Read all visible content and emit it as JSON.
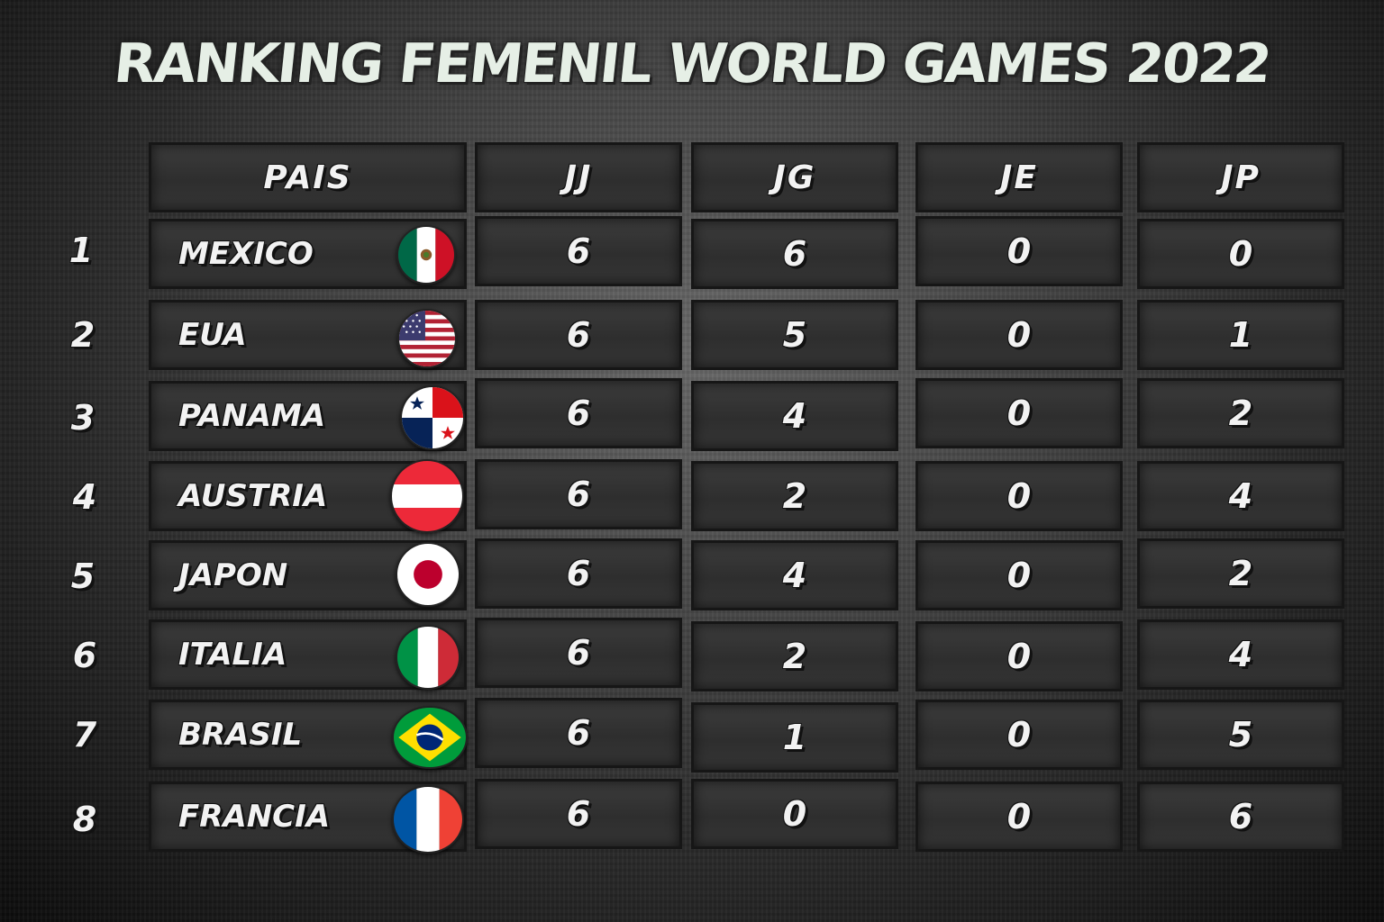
{
  "title": "RANKING FEMENIL WORLD GAMES 2022",
  "headers": {
    "pais": "PAIS",
    "jj": "JJ",
    "jg": "JG",
    "je": "JE",
    "jp": "JP"
  },
  "rows": [
    {
      "rank": "1",
      "country": "MEXICO",
      "jj": "6",
      "jg": "6",
      "je": "0",
      "jp": "0",
      "flag": "mexico-flag-icon"
    },
    {
      "rank": "2",
      "country": "EUA",
      "jj": "6",
      "jg": "5",
      "je": "0",
      "jp": "1",
      "flag": "usa-flag-icon"
    },
    {
      "rank": "3",
      "country": "PANAMA",
      "jj": "6",
      "jg": "4",
      "je": "0",
      "jp": "2",
      "flag": "panama-flag-icon"
    },
    {
      "rank": "4",
      "country": "AUSTRIA",
      "jj": "6",
      "jg": "2",
      "je": "0",
      "jp": "4",
      "flag": "austria-flag-icon"
    },
    {
      "rank": "5",
      "country": "JAPON",
      "jj": "6",
      "jg": "4",
      "je": "0",
      "jp": "2",
      "flag": "japan-flag-icon"
    },
    {
      "rank": "6",
      "country": "ITALIA",
      "jj": "6",
      "jg": "2",
      "je": "0",
      "jp": "4",
      "flag": "italy-flag-icon"
    },
    {
      "rank": "7",
      "country": "BRASIL",
      "jj": "6",
      "jg": "1",
      "je": "0",
      "jp": "5",
      "flag": "brazil-flag-icon"
    },
    {
      "rank": "8",
      "country": "FRANCIA",
      "jj": "6",
      "jg": "0",
      "je": "0",
      "jp": "6",
      "flag": "france-flag-icon"
    }
  ],
  "colors": {
    "title": "#e6efe6",
    "text": "#f2f2f2",
    "cell_border": "#161616"
  }
}
